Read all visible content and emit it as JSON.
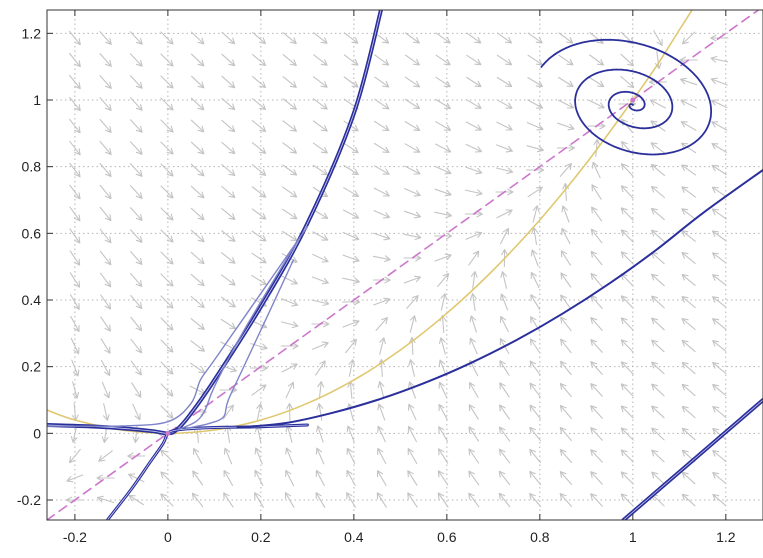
{
  "chart_data": {
    "type": "line",
    "title": "",
    "xlabel": "",
    "ylabel": "",
    "xlim": [
      -0.26,
      1.28
    ],
    "ylim": [
      -0.26,
      1.27
    ],
    "grid": true,
    "x_ticks": [
      -0.2,
      0,
      0.2,
      0.4,
      0.6,
      0.8,
      1,
      1.2
    ],
    "x_tick_labels": [
      "-0.2",
      "0",
      "0.2",
      "0.4",
      "0.6",
      "0.8",
      "1",
      "1.2"
    ],
    "y_ticks": [
      -0.2,
      0,
      0.2,
      0.4,
      0.6,
      0.8,
      1,
      1.2
    ],
    "y_tick_labels": [
      "-0.2",
      "0",
      "0.2",
      "0.4",
      "0.6",
      "0.8",
      "1",
      "1.2"
    ],
    "fixed_points": [
      [
        0,
        0
      ],
      [
        1,
        1
      ]
    ],
    "quiver": {
      "x_start": -0.2,
      "x_step": 0.066,
      "y_start": -0.2,
      "y_step": 0.066,
      "count": 22
    },
    "colors": {
      "trajectory": "#2b2f9b",
      "trajectory_light": "#7e84c8",
      "nullcline_dashed": "#cc77cc",
      "nullcline_curve": "#e0c870",
      "arrow": "#c4c4c4",
      "grid": "#b5b5b5",
      "axes": "#333333"
    },
    "series": [
      {
        "kind": "nullcline-dashed",
        "x": [
          -0.26,
          1.28
        ],
        "y": [
          -0.26,
          1.28
        ]
      },
      {
        "kind": "nullcline-curve",
        "x": [
          -0.26,
          -0.2,
          -0.1,
          0,
          0.1,
          0.2,
          0.3,
          0.4,
          0.5,
          0.6,
          0.7,
          0.8,
          0.9,
          1.0,
          1.05,
          1.1,
          1.15
        ],
        "y": [
          0.07,
          0.04,
          0.01,
          0,
          0.01,
          0.04,
          0.09,
          0.16,
          0.25,
          0.36,
          0.49,
          0.64,
          0.81,
          1.0,
          1.1,
          1.21,
          1.32
        ]
      },
      {
        "kind": "trajectory",
        "width": 4,
        "x": [
          -0.26,
          -0.15,
          -0.08,
          -0.03,
          0,
          0.02,
          0.05,
          0.1,
          0.2,
          0.3,
          0.4,
          0.46
        ],
        "y": [
          0.025,
          0.02,
          0.013,
          0.006,
          0,
          0.012,
          0.06,
          0.16,
          0.38,
          0.63,
          0.96,
          1.28
        ]
      },
      {
        "kind": "trajectory",
        "width": 3,
        "x": [
          -0.13,
          -0.08,
          -0.04,
          -0.01,
          0,
          0.02,
          0.06,
          0.12,
          0.2,
          0.3
        ],
        "y": [
          -0.26,
          -0.17,
          -0.09,
          -0.03,
          0,
          0.01,
          0.015,
          0.018,
          0.02,
          0.025
        ]
      },
      {
        "kind": "trajectory-light",
        "width": 1.4,
        "x": [
          -0.26,
          -0.1,
          0,
          0.05,
          0.07,
          0.1,
          0.18,
          0.3
        ],
        "y": [
          0.022,
          0.022,
          0.035,
          0.09,
          0.16,
          0.22,
          0.38,
          0.62
        ]
      },
      {
        "kind": "trajectory-light",
        "width": 1.4,
        "x": [
          0.02,
          0.06,
          0.08,
          0.1,
          0.16,
          0.28
        ],
        "y": [
          0.01,
          0.035,
          0.07,
          0.14,
          0.3,
          0.58
        ]
      },
      {
        "kind": "trajectory-light",
        "width": 1.4,
        "x": [
          0.04,
          0.09,
          0.12,
          0.13,
          0.17,
          0.27
        ],
        "y": [
          0.015,
          0.03,
          0.05,
          0.1,
          0.22,
          0.52
        ]
      },
      {
        "kind": "trajectory",
        "width": 2,
        "x": [
          0.15,
          0.25,
          0.35,
          0.45,
          0.55,
          0.65,
          0.75,
          0.85,
          0.95,
          1.05,
          1.15,
          1.28
        ],
        "y": [
          0.018,
          0.03,
          0.06,
          0.1,
          0.15,
          0.21,
          0.28,
          0.36,
          0.45,
          0.55,
          0.66,
          0.79
        ]
      },
      {
        "kind": "trajectory",
        "width": 4,
        "x": [
          0.98,
          1.03,
          1.08,
          1.13,
          1.18,
          1.23,
          1.28
        ],
        "y": [
          -0.26,
          -0.2,
          -0.14,
          -0.08,
          -0.02,
          0.04,
          0.1
        ]
      },
      {
        "kind": "spiral",
        "width": 1.8,
        "center": [
          1.0,
          0.985
        ],
        "turns": 3.3,
        "r_max": 0.42
      }
    ]
  }
}
